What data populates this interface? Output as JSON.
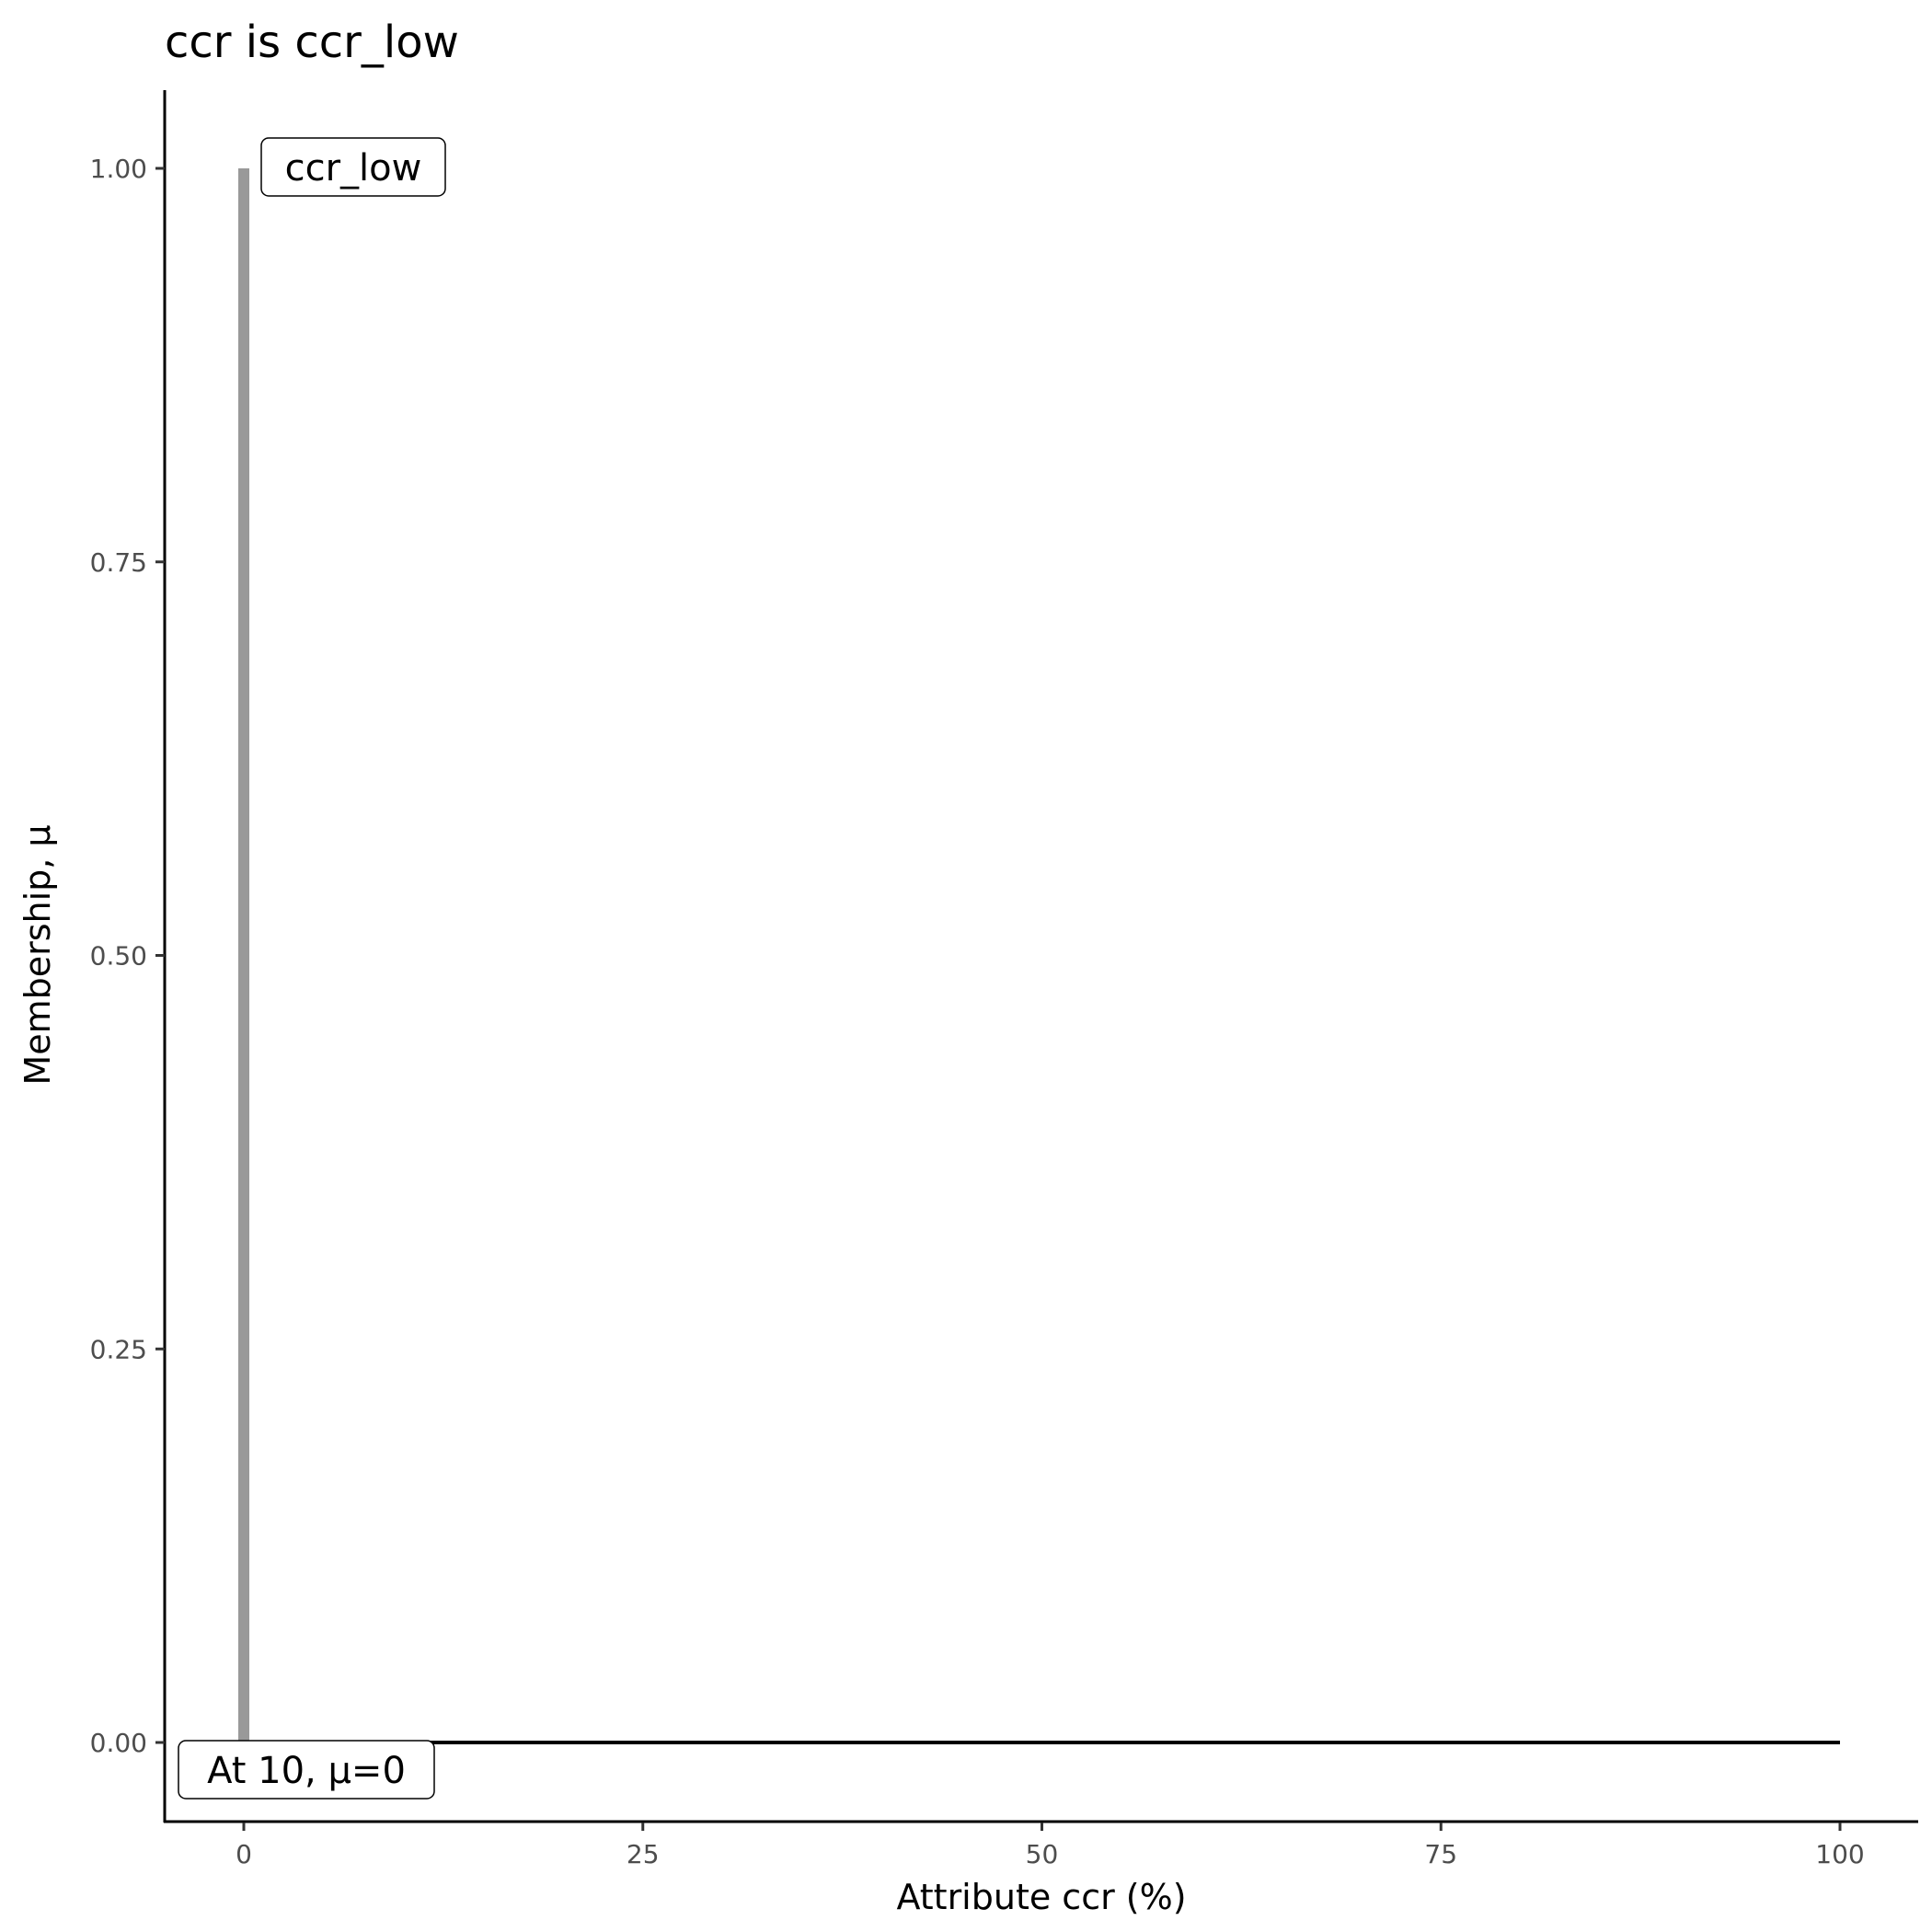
{
  "chart_data": {
    "type": "line",
    "title": "ccr is ccr_low",
    "xlabel": "Attribute ccr (%)",
    "ylabel": "Membership, μ",
    "xlim": [
      -5,
      105
    ],
    "ylim": [
      -0.05,
      1.05
    ],
    "x_ticks": [
      "0",
      "25",
      "50",
      "75",
      "100"
    ],
    "y_ticks": [
      "0.00",
      "0.25",
      "0.50",
      "0.75",
      "1.00"
    ],
    "grid": false,
    "series": [
      {
        "color": "#999999",
        "points": [
          [
            0,
            0
          ],
          [
            0,
            1
          ]
        ]
      },
      {
        "color": "#000000",
        "points": [
          [
            0,
            0
          ],
          [
            100,
            0
          ]
        ]
      }
    ],
    "annotations": [
      {
        "text": "ccr_low",
        "x": 0,
        "y": 1
      },
      {
        "text": "At 10, μ=0",
        "x": 0,
        "y": 0
      }
    ]
  }
}
